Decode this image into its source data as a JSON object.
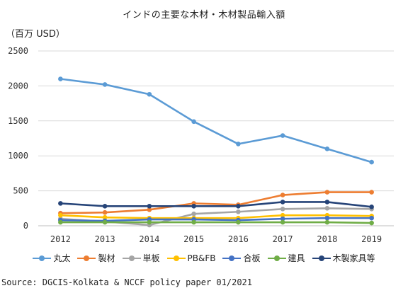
{
  "chart_data": {
    "type": "line",
    "title": "インドの主要な木材・木材製品輸入額",
    "ylabel": "（百万 USD）",
    "xlabel": "",
    "ylim": [
      0,
      2500
    ],
    "yticks": [
      0,
      500,
      1000,
      1500,
      2000,
      2500
    ],
    "grid": true,
    "legend_position": "bottom",
    "x": [
      "2012",
      "2013",
      "2014",
      "2015",
      "2016",
      "2017",
      "2018",
      "2019"
    ],
    "series": [
      {
        "name": "丸太",
        "color": "#5b9bd5",
        "values": [
          2100,
          2020,
          1880,
          1490,
          1170,
          1290,
          1100,
          910
        ]
      },
      {
        "name": "製材",
        "color": "#ed7d31",
        "values": [
          180,
          190,
          230,
          320,
          300,
          440,
          480,
          480
        ]
      },
      {
        "name": "単板",
        "color": "#a5a5a5",
        "values": [
          100,
          60,
          10,
          170,
          200,
          240,
          250,
          240
        ]
      },
      {
        "name": "PB&FB",
        "color": "#ffc000",
        "values": [
          150,
          120,
          110,
          110,
          110,
          150,
          150,
          140
        ]
      },
      {
        "name": "合板",
        "color": "#4472c4",
        "values": [
          80,
          70,
          90,
          90,
          80,
          100,
          110,
          110
        ]
      },
      {
        "name": "建具",
        "color": "#70ad47",
        "values": [
          50,
          50,
          50,
          50,
          50,
          50,
          50,
          40
        ]
      },
      {
        "name": "木製家具等",
        "color": "#264478",
        "values": [
          320,
          280,
          280,
          280,
          280,
          340,
          340,
          270
        ]
      }
    ]
  },
  "source": "Source: DGCIS-Kolkata & NCCF policy paper 01/2021"
}
